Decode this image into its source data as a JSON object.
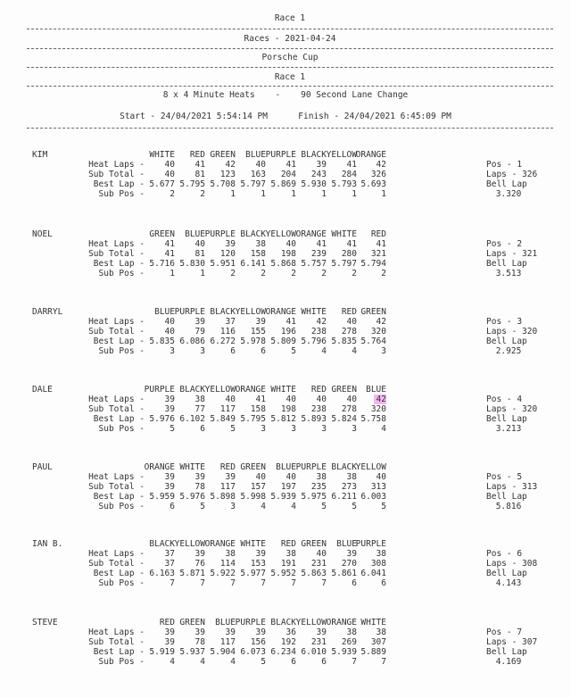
{
  "header": {
    "title": "Race 1",
    "date_line": "Races - 2021-04-24",
    "series": "Porsche Cup",
    "race": "Race 1",
    "format": "8 x 4 Minute Heats    -    90 Second Lane Change",
    "times": "Start - 24/04/2021 5:54:14 PM      Finish - 24/04/2021 6:45:09 PM"
  },
  "row_labels": {
    "heat_laps": "Heat Laps -",
    "sub_total": "Sub Total -",
    "best_lap": "Best Lap -",
    "sub_pos": "Sub Pos -"
  },
  "highlight_color": "#f6b6ef",
  "drivers": [
    {
      "name": "KIM",
      "lanes": [
        "WHITE",
        "RED",
        "GREEN",
        "BLUE",
        "PURPLE",
        "BLACK",
        "YELLOW",
        "ORANGE"
      ],
      "heat_laps": [
        "40",
        "41",
        "42",
        "40",
        "41",
        "39",
        "41",
        "42"
      ],
      "sub_total": [
        "40",
        "81",
        "123",
        "163",
        "204",
        "243",
        "284",
        "326"
      ],
      "best_lap": [
        "5.677",
        "5.795",
        "5.708",
        "5.797",
        "5.869",
        "5.930",
        "5.793",
        "5.693"
      ],
      "sub_pos": [
        "2",
        "2",
        "1",
        "1",
        "1",
        "1",
        "1",
        "1"
      ],
      "pos": "Pos - 1",
      "laps": "Laps - 326",
      "bell_label": "Bell Lap",
      "bell_lap": "3.320"
    },
    {
      "name": "NOEL",
      "lanes": [
        "GREEN",
        "BLUE",
        "PURPLE",
        "BLACK",
        "YELLOW",
        "ORANGE",
        "WHITE",
        "RED"
      ],
      "heat_laps": [
        "41",
        "40",
        "39",
        "38",
        "40",
        "41",
        "41",
        "41"
      ],
      "sub_total": [
        "41",
        "81",
        "120",
        "158",
        "198",
        "239",
        "280",
        "321"
      ],
      "best_lap": [
        "5.716",
        "5.830",
        "5.951",
        "6.141",
        "5.868",
        "5.757",
        "5.797",
        "5.794"
      ],
      "sub_pos": [
        "1",
        "1",
        "2",
        "2",
        "2",
        "2",
        "2",
        "2"
      ],
      "pos": "Pos - 2",
      "laps": "Laps - 321",
      "bell_label": "Bell Lap",
      "bell_lap": "3.513"
    },
    {
      "name": "DARRYL",
      "lanes": [
        "BLUE",
        "PURPLE",
        "BLACK",
        "YELLOW",
        "ORANGE",
        "WHITE",
        "RED",
        "GREEN"
      ],
      "heat_laps": [
        "40",
        "39",
        "37",
        "39",
        "41",
        "42",
        "40",
        "42"
      ],
      "sub_total": [
        "40",
        "79",
        "116",
        "155",
        "196",
        "238",
        "278",
        "320"
      ],
      "best_lap": [
        "5.835",
        "6.086",
        "6.272",
        "5.978",
        "5.809",
        "5.796",
        "5.835",
        "5.764"
      ],
      "sub_pos": [
        "3",
        "3",
        "6",
        "6",
        "5",
        "4",
        "4",
        "3"
      ],
      "pos": "Pos - 3",
      "laps": "Laps - 320",
      "bell_label": "Bell Lap",
      "bell_lap": "2.925"
    },
    {
      "name": "DALE",
      "lanes": [
        "PURPLE",
        "BLACK",
        "YELLOW",
        "ORANGE",
        "WHITE",
        "RED",
        "GREEN",
        "BLUE"
      ],
      "heat_laps": [
        "39",
        "38",
        "40",
        "41",
        "40",
        "40",
        "40",
        "42"
      ],
      "sub_total": [
        "39",
        "77",
        "117",
        "158",
        "198",
        "238",
        "278",
        "320"
      ],
      "best_lap": [
        "5.976",
        "6.102",
        "5.849",
        "5.795",
        "5.812",
        "5.893",
        "5.824",
        "5.758"
      ],
      "sub_pos": [
        "5",
        "6",
        "5",
        "3",
        "3",
        "3",
        "3",
        "4"
      ],
      "pos": "Pos - 4",
      "laps": "Laps - 320",
      "bell_label": "Bell Lap",
      "bell_lap": "3.213",
      "highlighted_heat": 8
    },
    {
      "name": "PAUL",
      "lanes": [
        "ORANGE",
        "WHITE",
        "RED",
        "GREEN",
        "BLUE",
        "PURPLE",
        "BLACK",
        "YELLOW"
      ],
      "heat_laps": [
        "39",
        "39",
        "39",
        "40",
        "40",
        "38",
        "38",
        "40"
      ],
      "sub_total": [
        "39",
        "78",
        "117",
        "157",
        "197",
        "235",
        "273",
        "313"
      ],
      "best_lap": [
        "5.959",
        "5.976",
        "5.898",
        "5.998",
        "5.939",
        "5.975",
        "6.211",
        "6.003"
      ],
      "sub_pos": [
        "6",
        "5",
        "3",
        "4",
        "4",
        "5",
        "5",
        "5"
      ],
      "pos": "Pos - 5",
      "laps": "Laps - 313",
      "bell_label": "Bell Lap",
      "bell_lap": "5.816"
    },
    {
      "name": "IAN B.",
      "lanes": [
        "BLACK",
        "YELLOW",
        "ORANGE",
        "WHITE",
        "RED",
        "GREEN",
        "BLUE",
        "PURPLE"
      ],
      "heat_laps": [
        "37",
        "39",
        "38",
        "39",
        "38",
        "40",
        "39",
        "38"
      ],
      "sub_total": [
        "37",
        "76",
        "114",
        "153",
        "191",
        "231",
        "270",
        "308"
      ],
      "best_lap": [
        "6.163",
        "5.871",
        "5.922",
        "5.977",
        "5.952",
        "5.863",
        "5.861",
        "6.041"
      ],
      "sub_pos": [
        "7",
        "7",
        "7",
        "7",
        "7",
        "7",
        "6",
        "6"
      ],
      "pos": "Pos - 6",
      "laps": "Laps - 308",
      "bell_label": "Bell Lap",
      "bell_lap": "4.143"
    },
    {
      "name": "STEVE",
      "lanes": [
        "RED",
        "GREEN",
        "BLUE",
        "PURPLE",
        "BLACK",
        "YELLOW",
        "ORANGE",
        "WHITE"
      ],
      "heat_laps": [
        "39",
        "39",
        "39",
        "39",
        "36",
        "39",
        "38",
        "38"
      ],
      "sub_total": [
        "39",
        "78",
        "117",
        "156",
        "192",
        "231",
        "269",
        "307"
      ],
      "best_lap": [
        "5.919",
        "5.937",
        "5.904",
        "6.073",
        "6.234",
        "6.010",
        "5.939",
        "5.889"
      ],
      "sub_pos": [
        "4",
        "4",
        "4",
        "5",
        "6",
        "6",
        "7",
        "7"
      ],
      "pos": "Pos - 7",
      "laps": "Laps - 307",
      "bell_label": "Bell Lap",
      "bell_lap": "4.169"
    }
  ]
}
